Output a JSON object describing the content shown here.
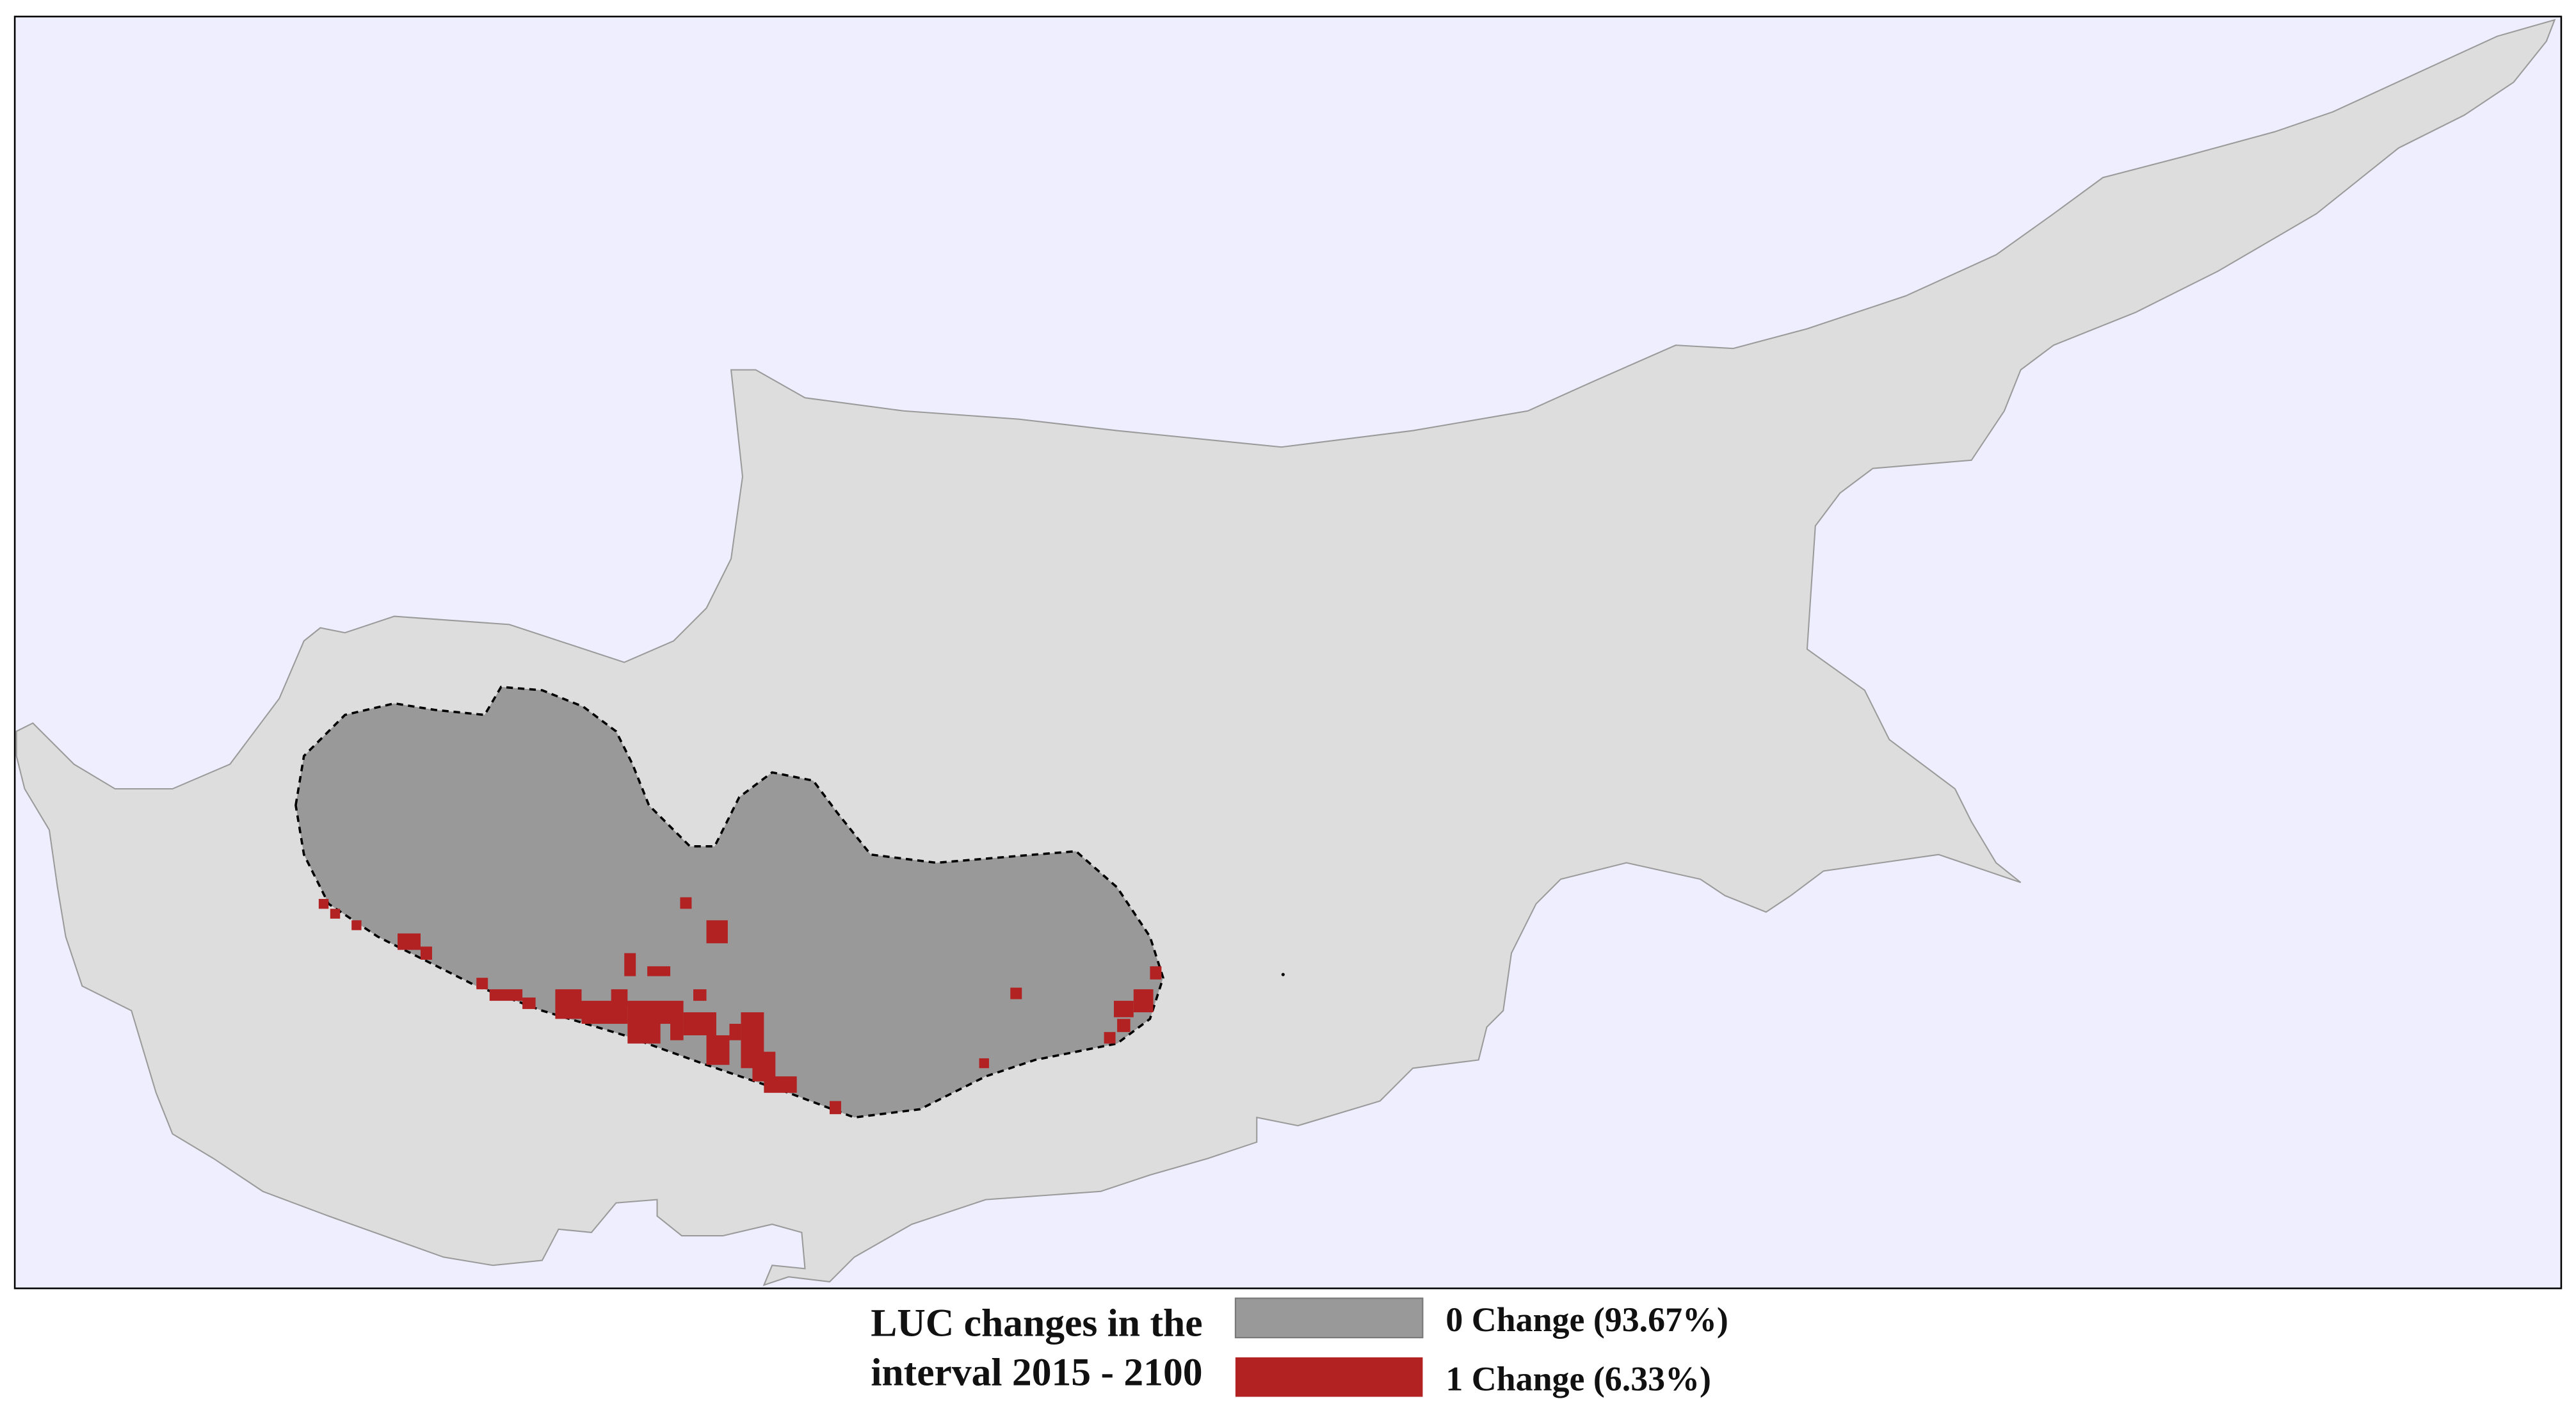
{
  "legend": {
    "title": [
      "LUC changes in the",
      "interval 2015 - 2100"
    ],
    "items": [
      {
        "label": "0 Change (93.67%)",
        "color": "#999999"
      },
      {
        "label": "1 Change (6.33%)",
        "color": "#b22222"
      }
    ]
  }
}
